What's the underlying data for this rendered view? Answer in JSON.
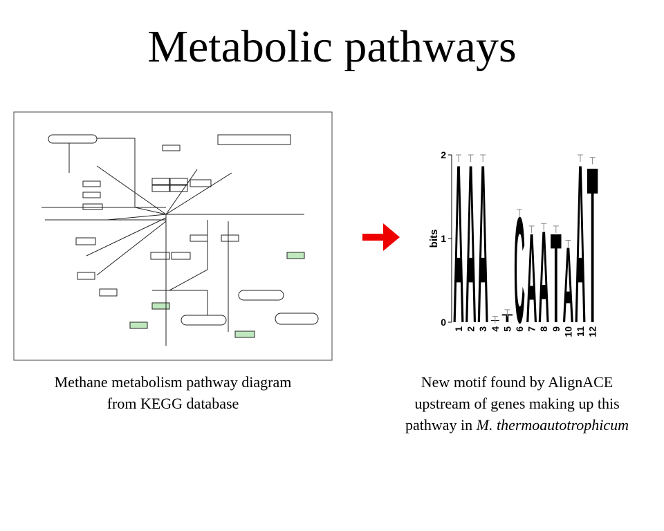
{
  "title": "Metabolic pathways",
  "left": {
    "caption": [
      "Methane metabolism pathway diagram",
      "from KEGG database"
    ]
  },
  "right": {
    "caption": [
      "New motif found by AlignACE",
      "upstream of genes making up this"
    ],
    "caption_last": "pathway in",
    "caption_species": "M. thermoautotrophicum",
    "logo": {
      "ylabel": "bits",
      "ylim": [
        0,
        2
      ],
      "yticks": [
        0,
        1,
        2
      ],
      "positions": [
        1,
        2,
        3,
        4,
        5,
        6,
        7,
        8,
        9,
        10,
        11,
        12
      ],
      "letters": [
        "A",
        "A",
        "A",
        null,
        "T",
        "C",
        "A",
        "A",
        "T",
        "A",
        "A",
        "T"
      ],
      "values": [
        1.95,
        1.95,
        1.95,
        0.02,
        0.1,
        1.3,
        1.1,
        1.13,
        1.1,
        0.93,
        1.95,
        1.92
      ]
    }
  }
}
